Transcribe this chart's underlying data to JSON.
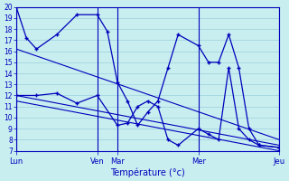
{
  "background_color": "#c8eef0",
  "grid_color": "#90c8d8",
  "line_color": "#0000bb",
  "xlabel": "Température (°c)",
  "ylim": [
    7,
    20
  ],
  "xlim": [
    0,
    13
  ],
  "yticks": [
    7,
    8,
    9,
    10,
    11,
    12,
    13,
    14,
    15,
    16,
    17,
    18,
    19,
    20
  ],
  "day_positions": [
    0,
    4,
    5,
    9,
    13
  ],
  "day_labels": [
    "Lun",
    "Ven",
    "Mar",
    "Mer",
    "Jeu"
  ],
  "line_upper": {
    "x": [
      0,
      0.5,
      1,
      2,
      3,
      4,
      4.5,
      5,
      5.5,
      6,
      6.5,
      7,
      7.5,
      8,
      9,
      9.5,
      10,
      10.5,
      11,
      11.5,
      12,
      13
    ],
    "y": [
      20,
      17.2,
      16.2,
      17.5,
      19.3,
      19.3,
      17.8,
      13.2,
      11.5,
      9.3,
      10.5,
      11.5,
      14.5,
      17.5,
      16.5,
      15.0,
      15.0,
      17.5,
      14.5,
      9.0,
      7.5,
      7.3
    ]
  },
  "line_lower": {
    "x": [
      0,
      1,
      2,
      3,
      4,
      5,
      5.5,
      6,
      6.5,
      7,
      7.5,
      8,
      9,
      9.5,
      10,
      10.5,
      11,
      11.5,
      12,
      13
    ],
    "y": [
      12.0,
      12.0,
      12.2,
      11.3,
      12.0,
      9.3,
      9.5,
      11.0,
      11.5,
      11.0,
      8.0,
      7.5,
      9.0,
      8.5,
      8.0,
      14.5,
      9.0,
      8.0,
      7.5,
      7.3
    ]
  },
  "trend1": [
    0,
    16.2,
    13,
    8.0
  ],
  "trend2": [
    0,
    12.0,
    13,
    7.5
  ],
  "trend3": [
    0,
    11.5,
    13,
    7.0
  ]
}
